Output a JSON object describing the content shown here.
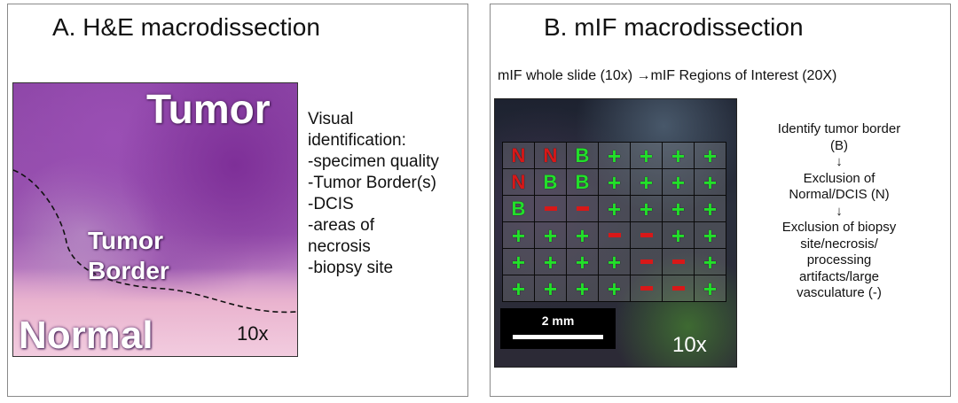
{
  "panel_a": {
    "title": "A. H&E macrodissection",
    "image_labels": {
      "tumor": "Tumor",
      "tumor_border_line1": "Tumor",
      "tumor_border_line2": "Border",
      "normal": "Normal",
      "magnification": "10x"
    },
    "notes": [
      "Visual",
      "identification:",
      "-specimen quality",
      "-Tumor Border(s)",
      "-DCIS",
      "-areas of",
      "necrosis",
      "-biopsy site"
    ]
  },
  "panel_b": {
    "title": "B. mIF macrodissection",
    "subtitle": "mIF whole slide (10x) →mIF Regions of Interest (20X)",
    "grid": [
      [
        "N",
        "N",
        "B",
        "+",
        "+",
        "+",
        "+"
      ],
      [
        "N",
        "B",
        "B",
        "+",
        "+",
        "+",
        "+"
      ],
      [
        "B",
        "-",
        "-",
        "+",
        "+",
        "+",
        "+"
      ],
      [
        "+",
        "+",
        "+",
        "-",
        "-",
        "+",
        "+"
      ],
      [
        "+",
        "+",
        "+",
        "+",
        "-",
        "-",
        "+"
      ],
      [
        "+",
        "+",
        "+",
        "+",
        "-",
        "-",
        "+"
      ]
    ],
    "scale_label": "2 mm",
    "magnification": "10x",
    "notes": [
      "Identify tumor border",
      "(B)",
      "↓",
      "Exclusion of",
      "Normal/DCIS (N)",
      "↓",
      "Exclusion of biopsy",
      "site/necrosis/",
      "processing",
      "artifacts/large",
      "vasculature (-)"
    ]
  },
  "colors": {
    "include_symbol": "#22e02a",
    "exclude_symbol": "#d81818",
    "he_stain": "#8c45a6",
    "normal_stain": "#eab4cf"
  }
}
